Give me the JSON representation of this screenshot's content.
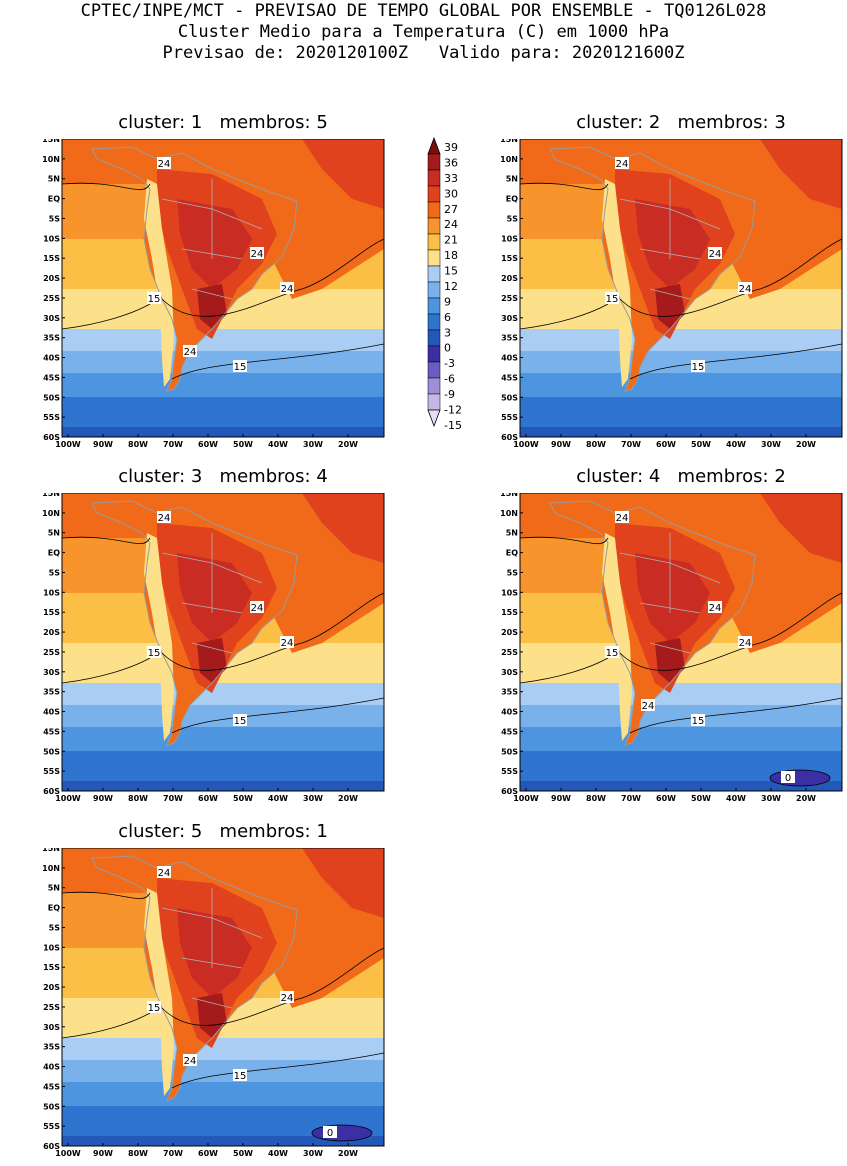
{
  "header": {
    "line1": "CPTEC/INPE/MCT - PREVISAO DE TEMPO GLOBAL POR ENSEMBLE - TQ0126L028",
    "line2": "Cluster Medio para a Temperatura (C) em 1000 hPa",
    "line3": "Previsao de: 2020120100Z   Valido para: 2020121600Z"
  },
  "axes": {
    "lat_labels": [
      "15N",
      "10N",
      "5N",
      "EQ",
      "5S",
      "10S",
      "15S",
      "20S",
      "25S",
      "30S",
      "35S",
      "40S",
      "45S",
      "50S",
      "55S",
      "60S"
    ],
    "lon_labels": [
      "100W",
      "90W",
      "80W",
      "70W",
      "60W",
      "50W",
      "40W",
      "30W",
      "20W"
    ]
  },
  "colorbar": {
    "labels": [
      "39",
      "36",
      "33",
      "30",
      "27",
      "24",
      "21",
      "18",
      "15",
      "12",
      "9",
      "6",
      "3",
      "0",
      "-3",
      "-6",
      "-9",
      "-12",
      "-15"
    ],
    "colors": [
      "#7a0d0d",
      "#a51a1a",
      "#c92c22",
      "#e0421e",
      "#f06a1a",
      "#f7942b",
      "#fcbf45",
      "#fde08a",
      "#a9cdf3",
      "#79b2ea",
      "#4d95df",
      "#2f74cf",
      "#2458b8",
      "#3a2fa3",
      "#6b5cc4",
      "#9e8fd8",
      "#c4b8e6",
      "#e6ddf4"
    ]
  },
  "panels": [
    {
      "cluster_label": "cluster:",
      "cluster": "1",
      "membros_label": "membros:",
      "membros": "5",
      "contour_labels": [
        {
          "text": "24",
          "pos": "upper"
        },
        {
          "text": "24",
          "pos": "east"
        },
        {
          "text": "24",
          "pos": "coast"
        },
        {
          "text": "24",
          "pos": "south"
        },
        {
          "text": "15",
          "pos": "west"
        },
        {
          "text": "15",
          "pos": "mid"
        }
      ]
    },
    {
      "cluster_label": "cluster:",
      "cluster": "2",
      "membros_label": "membros:",
      "membros": "3",
      "contour_labels": [
        {
          "text": "24",
          "pos": "upper"
        },
        {
          "text": "24",
          "pos": "east"
        },
        {
          "text": "24",
          "pos": "coast"
        },
        {
          "text": "15",
          "pos": "west"
        },
        {
          "text": "15",
          "pos": "mid"
        }
      ]
    },
    {
      "cluster_label": "cluster:",
      "cluster": "3",
      "membros_label": "membros:",
      "membros": "4",
      "contour_labels": [
        {
          "text": "24",
          "pos": "upper"
        },
        {
          "text": "24",
          "pos": "coast"
        },
        {
          "text": "24",
          "pos": "east"
        },
        {
          "text": "15",
          "pos": "west"
        },
        {
          "text": "15",
          "pos": "mid"
        }
      ]
    },
    {
      "cluster_label": "cluster:",
      "cluster": "4",
      "membros_label": "membros:",
      "membros": "2",
      "contour_labels": [
        {
          "text": "24",
          "pos": "upper"
        },
        {
          "text": "24",
          "pos": "coast"
        },
        {
          "text": "24",
          "pos": "east"
        },
        {
          "text": "24",
          "pos": "south"
        },
        {
          "text": "15",
          "pos": "west"
        },
        {
          "text": "15",
          "pos": "mid"
        },
        {
          "text": "0",
          "pos": "cold"
        }
      ]
    },
    {
      "cluster_label": "cluster:",
      "cluster": "5",
      "membros_label": "membros:",
      "membros": "1",
      "contour_labels": [
        {
          "text": "24",
          "pos": "upper"
        },
        {
          "text": "24",
          "pos": "coast"
        },
        {
          "text": "24",
          "pos": "south"
        },
        {
          "text": "15",
          "pos": "west"
        },
        {
          "text": "15",
          "pos": "mid"
        },
        {
          "text": "0",
          "pos": "cold"
        }
      ]
    }
  ]
}
